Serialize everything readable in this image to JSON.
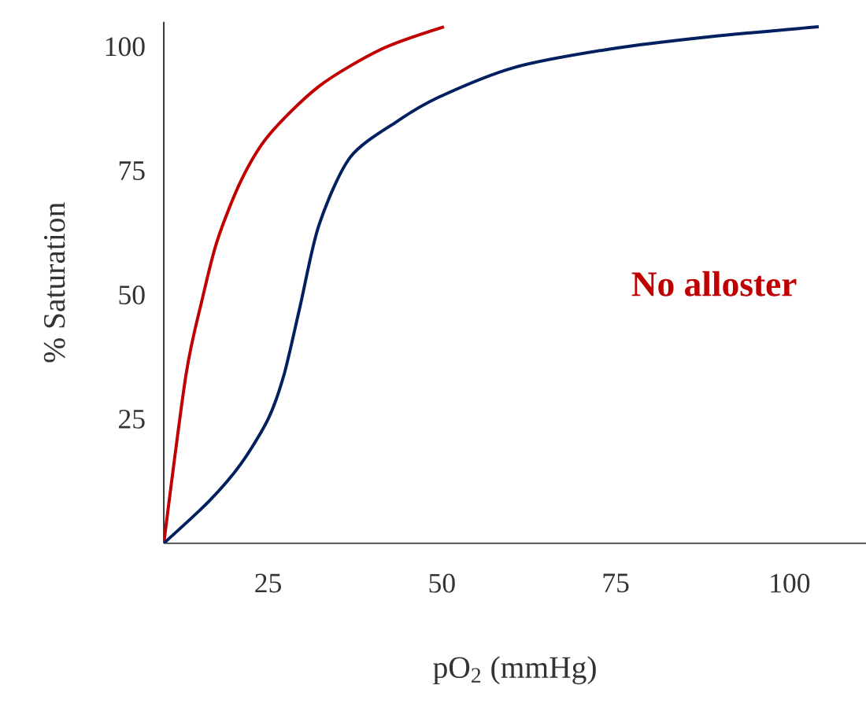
{
  "chart_data": {
    "type": "line",
    "xlabel": "pO$_{2}$ (mmHg)",
    "ylabel": "% Saturation",
    "annotations": [
      "No alloster"
    ],
    "xlim": [
      10,
      111
    ],
    "ylim": [
      0,
      105
    ],
    "xticks": [
      25,
      50,
      75,
      100
    ],
    "yticks": [
      25,
      50,
      75,
      100
    ],
    "grid": false,
    "marker": "none",
    "line_style": "solid",
    "series": [
      {
        "color": "#c00000",
        "x": [
          10,
          13.2,
          15.5,
          17.7,
          21.1,
          25,
          32.3,
          41.3,
          50.3
        ],
        "values": [
          0,
          34,
          49,
          61,
          73,
          82,
          92,
          99.5,
          104
        ]
      },
      {
        "color": "#002060",
        "x": [
          10,
          16.6,
          21.1,
          25,
          27.3,
          29.6,
          32.3,
          36.8,
          43.6,
          49.5,
          60.4,
          74.1,
          88.5,
          104.2
        ],
        "values": [
          0,
          8.6,
          16,
          25,
          34,
          47.7,
          64,
          77.7,
          85,
          89.8,
          95.8,
          99.5,
          102,
          104
        ]
      }
    ]
  }
}
